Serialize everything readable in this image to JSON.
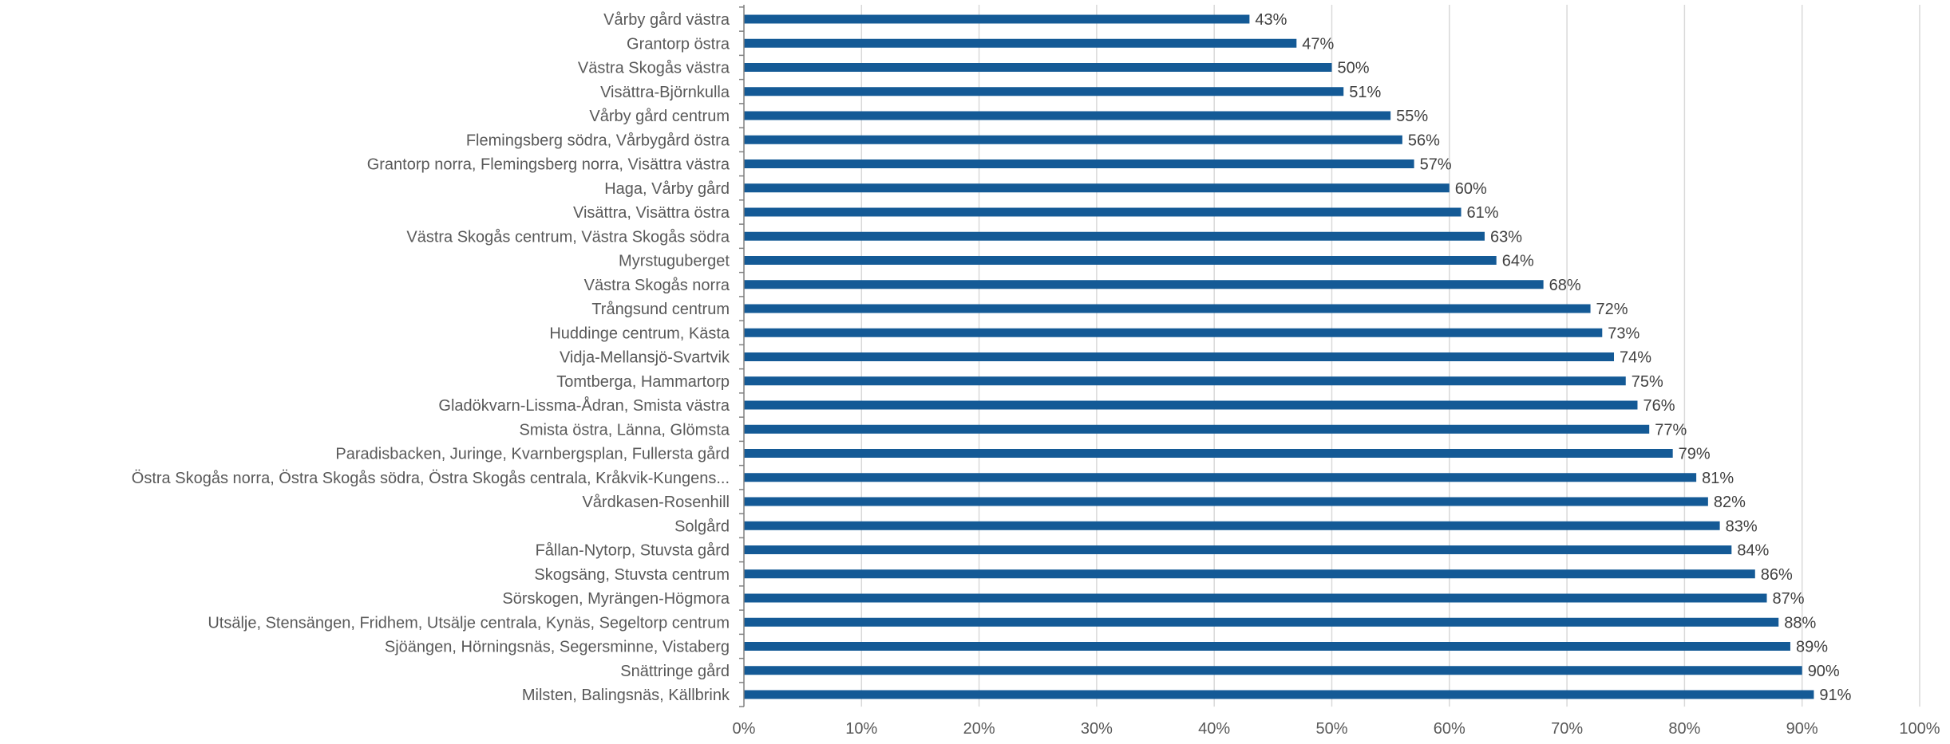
{
  "chart_data": {
    "type": "bar",
    "orientation": "horizontal",
    "title": "",
    "xlabel": "",
    "ylabel": "",
    "xlim": [
      0,
      1
    ],
    "value_format": "percent",
    "grid": true,
    "legend": "none",
    "colors": {
      "bar": "#145a96",
      "grid": "#d9d9d9",
      "axis": "#808080",
      "text": "#595959"
    },
    "x_ticks": [
      {
        "value": 0.0,
        "label": "0%"
      },
      {
        "value": 0.1,
        "label": "10%"
      },
      {
        "value": 0.2,
        "label": "20%"
      },
      {
        "value": 0.3,
        "label": "30%"
      },
      {
        "value": 0.4,
        "label": "40%"
      },
      {
        "value": 0.5,
        "label": "50%"
      },
      {
        "value": 0.6,
        "label": "60%"
      },
      {
        "value": 0.7,
        "label": "70%"
      },
      {
        "value": 0.8,
        "label": "80%"
      },
      {
        "value": 0.9,
        "label": "90%"
      },
      {
        "value": 1.0,
        "label": "100%"
      }
    ],
    "categories": [
      "Vårby gård västra",
      "Grantorp östra",
      "Västra Skogås västra",
      "Visättra-Björnkulla",
      "Vårby gård centrum",
      "Flemingsberg södra, Vårbygård östra",
      "Grantorp norra, Flemingsberg norra, Visättra västra",
      "Haga, Vårby gård",
      "Visättra, Visättra östra",
      "Västra Skogås centrum, Västra Skogås södra",
      "Myrstuguberget",
      "Västra Skogås norra",
      "Trångsund centrum",
      "Huddinge centrum, Kästa",
      "Vidja-Mellansjö-Svartvik",
      "Tomtberga, Hammartorp",
      "Gladökvarn-Lissma-Ådran, Smista västra",
      "Smista östra, Länna, Glömsta",
      "Paradisbacken, Juringe, Kvarnbergsplan, Fullersta gård",
      "Östra Skogås norra, Östra Skogås södra, Östra Skogås centrala, Kråkvik-Kungens...",
      "Vårdkasen-Rosenhill",
      "Solgård",
      "Fållan-Nytorp, Stuvsta gård",
      "Skogsäng, Stuvsta centrum",
      "Sörskogen, Myrängen-Högmora",
      "Utsälje, Stensängen, Fridhem, Utsälje centrala, Kynäs, Segeltorp centrum",
      "Sjöängen, Hörningsnäs, Segersminne, Vistaberg",
      "Snättringe gård",
      "Milsten, Balingsnäs, Källbrink"
    ],
    "values": [
      0.43,
      0.47,
      0.5,
      0.51,
      0.55,
      0.56,
      0.57,
      0.6,
      0.61,
      0.63,
      0.64,
      0.68,
      0.72,
      0.73,
      0.74,
      0.75,
      0.76,
      0.77,
      0.79,
      0.81,
      0.82,
      0.83,
      0.84,
      0.86,
      0.87,
      0.88,
      0.89,
      0.9,
      0.91
    ],
    "data_labels": [
      "43%",
      "47%",
      "50%",
      "51%",
      "55%",
      "56%",
      "57%",
      "60%",
      "61%",
      "63%",
      "64%",
      "68%",
      "72%",
      "73%",
      "74%",
      "75%",
      "76%",
      "77%",
      "79%",
      "81%",
      "82%",
      "83%",
      "84%",
      "86%",
      "87%",
      "88%",
      "89%",
      "90%",
      "91%"
    ]
  }
}
